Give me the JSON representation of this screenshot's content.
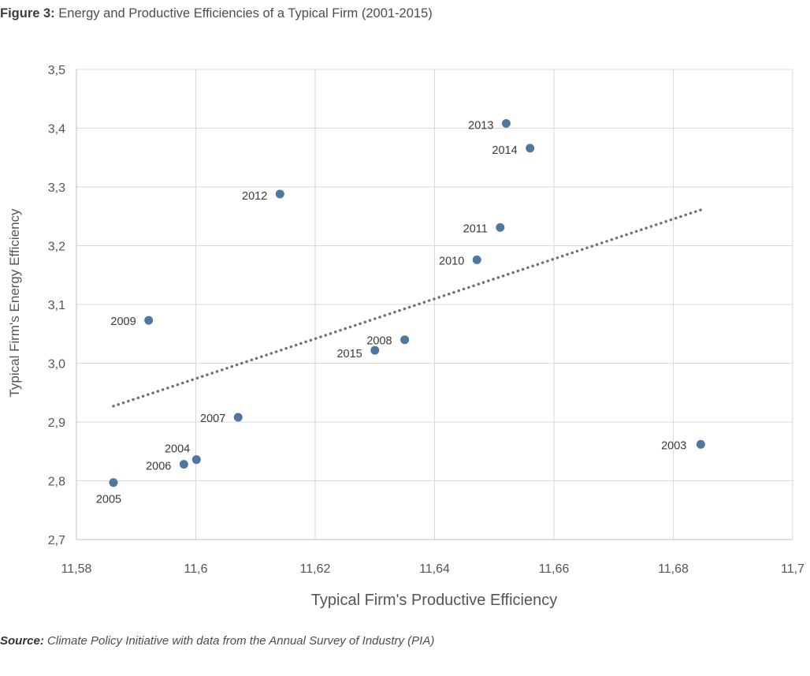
{
  "figure": {
    "label": "Figure 3:",
    "title": "Energy and Productive Efficiencies of a Typical Firm (2001-2015)"
  },
  "source": {
    "label": "Source:",
    "text": "Climate Policy Initiative with data from the Annual Survey of Industry (PIA)"
  },
  "chart_data": {
    "type": "scatter",
    "xlabel": "Typical Firm's Productive Efficiency",
    "ylabel": "Typical Firm's Energy Efficiency",
    "xlim": [
      11.58,
      11.7
    ],
    "ylim": [
      2.7,
      3.5
    ],
    "x_ticks": [
      11.58,
      11.6,
      11.62,
      11.64,
      11.66,
      11.68,
      11.7
    ],
    "x_tick_labels": [
      "11,58",
      "11,6",
      "11,62",
      "11,64",
      "11,66",
      "11,68",
      "11,7"
    ],
    "y_ticks": [
      2.7,
      2.8,
      2.9,
      3.0,
      3.1,
      3.2,
      3.3,
      3.4,
      3.5
    ],
    "y_tick_labels": [
      "2,7",
      "2,8",
      "2,9",
      "3,0",
      "3,1",
      "3,2",
      "3,3",
      "3,4",
      "3,5"
    ],
    "grid": true,
    "point_color": "#4f78a0",
    "trendline_color": "#707070",
    "points": [
      {
        "label": "2003",
        "x": 11.6846,
        "y": 2.862
      },
      {
        "label": "2004",
        "x": 11.6001,
        "y": 2.836
      },
      {
        "label": "2005",
        "x": 11.5862,
        "y": 2.797
      },
      {
        "label": "2006",
        "x": 11.598,
        "y": 2.828
      },
      {
        "label": "2007",
        "x": 11.6071,
        "y": 2.908
      },
      {
        "label": "2008",
        "x": 11.635,
        "y": 3.04
      },
      {
        "label": "2009",
        "x": 11.5921,
        "y": 3.073
      },
      {
        "label": "2010",
        "x": 11.6471,
        "y": 3.176
      },
      {
        "label": "2011",
        "x": 11.651,
        "y": 3.231
      },
      {
        "label": "2012",
        "x": 11.6141,
        "y": 3.288
      },
      {
        "label": "2013",
        "x": 11.652,
        "y": 3.408
      },
      {
        "label": "2014",
        "x": 11.656,
        "y": 3.366
      },
      {
        "label": "2015",
        "x": 11.63,
        "y": 3.022
      }
    ],
    "trendline": {
      "x": [
        11.5862,
        11.6846
      ],
      "y": [
        2.927,
        3.261
      ],
      "style": "dotted"
    }
  }
}
